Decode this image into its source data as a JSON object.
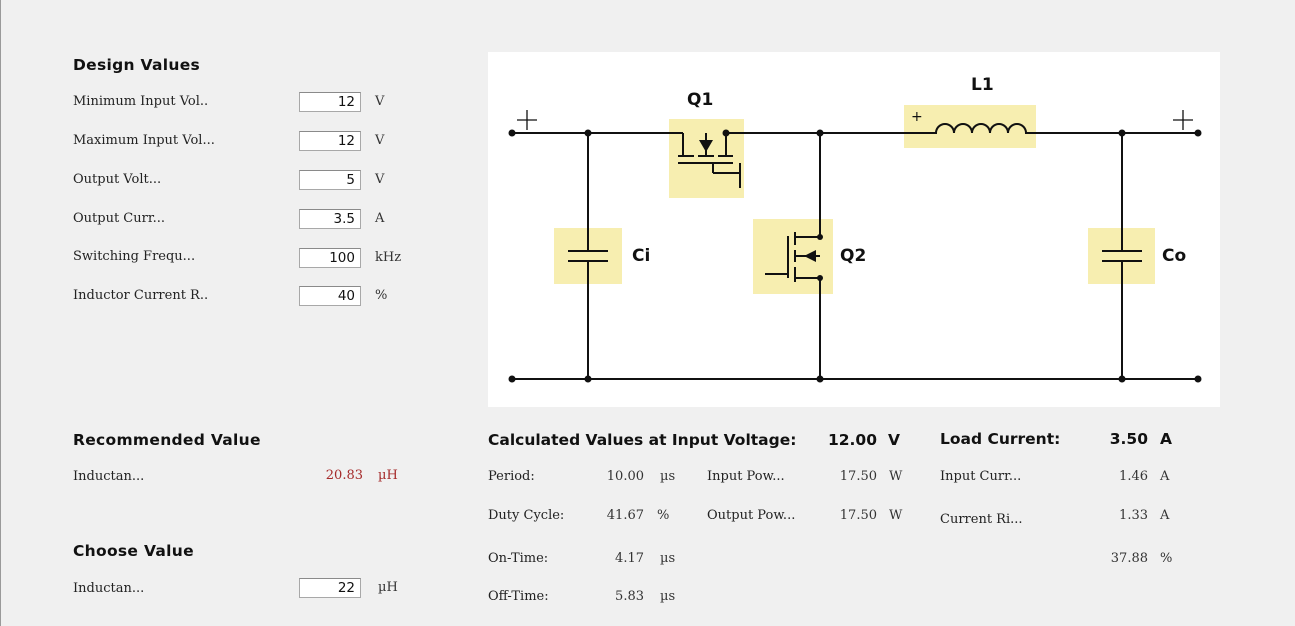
{
  "design": {
    "title": "Design Values",
    "rows": [
      {
        "label": "Minimum Input Vol..",
        "value": "12",
        "unit": "V"
      },
      {
        "label": "Maximum Input Vol...",
        "value": "12",
        "unit": "V"
      },
      {
        "label": "Output Volt...",
        "value": "5",
        "unit": "V"
      },
      {
        "label": "Output Curr...",
        "value": "3.5",
        "unit": "A"
      },
      {
        "label": "Switching Frequ...",
        "value": "100",
        "unit": "kHz"
      },
      {
        "label": "Inductor Current R..",
        "value": "40",
        "unit": "%"
      }
    ]
  },
  "recommended": {
    "title": "Recommended Value",
    "label": "Inductan...",
    "value": "20.83",
    "unit": "µH"
  },
  "choose": {
    "title": "Choose Value",
    "label": "Inductan...",
    "value": "22",
    "unit": "µH"
  },
  "circuit": {
    "q1": "Q1",
    "q2": "Q2",
    "l1": "L1",
    "ci": "Ci",
    "co": "Co",
    "plus": "+"
  },
  "calc": {
    "title": "Calculated Values at Input Voltage:",
    "input_voltage": "12.00",
    "input_voltage_unit": "V",
    "load_title": "Load Current:",
    "load_current": "3.50",
    "load_unit": "A",
    "period": {
      "label": "Period:",
      "value": "10.00",
      "unit": "µs"
    },
    "duty": {
      "label": "Duty Cycle:",
      "value": "41.67",
      "unit": "%"
    },
    "on_time": {
      "label": "On-Time:",
      "value": "4.17",
      "unit": "µs"
    },
    "off_time": {
      "label": "Off-Time:",
      "value": "5.83",
      "unit": "µs"
    },
    "input_power": {
      "label": "Input Pow...",
      "value": "17.50",
      "unit": "W"
    },
    "output_power": {
      "label": "Output Pow...",
      "value": "17.50",
      "unit": "W"
    },
    "input_current": {
      "label": "Input Curr...",
      "value": "1.46",
      "unit": "A"
    },
    "current_ripple": {
      "label": "Current Ri...",
      "value": "1.33",
      "unit": "A"
    },
    "ripple_pct": {
      "value": "37.88",
      "unit": "%"
    }
  }
}
